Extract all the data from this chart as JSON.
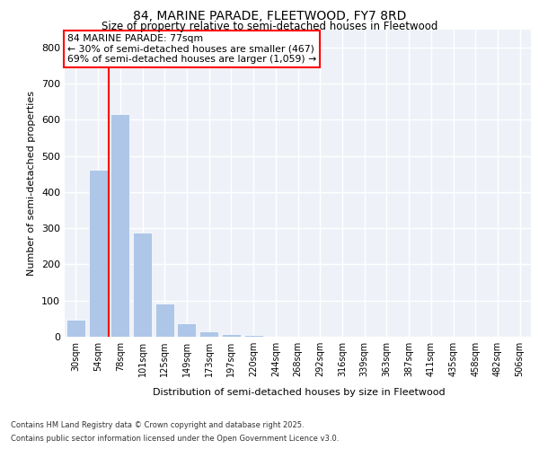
{
  "title1": "84, MARINE PARADE, FLEETWOOD, FY7 8RD",
  "title2": "Size of property relative to semi-detached houses in Fleetwood",
  "xlabel": "Distribution of semi-detached houses by size in Fleetwood",
  "ylabel": "Number of semi-detached properties",
  "categories": [
    "30sqm",
    "54sqm",
    "78sqm",
    "101sqm",
    "125sqm",
    "149sqm",
    "173sqm",
    "197sqm",
    "220sqm",
    "244sqm",
    "268sqm",
    "292sqm",
    "316sqm",
    "339sqm",
    "363sqm",
    "387sqm",
    "411sqm",
    "435sqm",
    "458sqm",
    "482sqm",
    "506sqm"
  ],
  "values": [
    46,
    462,
    616,
    289,
    93,
    37,
    14,
    8,
    5,
    0,
    0,
    0,
    0,
    0,
    0,
    0,
    0,
    0,
    0,
    0,
    0
  ],
  "bar_color": "#aec6e8",
  "vline_color": "red",
  "annotation_title": "84 MARINE PARADE: 77sqm",
  "annotation_line1": "← 30% of semi-detached houses are smaller (467)",
  "annotation_line2": "69% of semi-detached houses are larger (1,059) →",
  "annotation_box_color": "white",
  "annotation_box_edge": "red",
  "ylim": [
    0,
    850
  ],
  "yticks": [
    0,
    100,
    200,
    300,
    400,
    500,
    600,
    700,
    800
  ],
  "background_color": "#eef2f8",
  "grid_color": "white",
  "footer1": "Contains HM Land Registry data © Crown copyright and database right 2025.",
  "footer2": "Contains public sector information licensed under the Open Government Licence v3.0."
}
